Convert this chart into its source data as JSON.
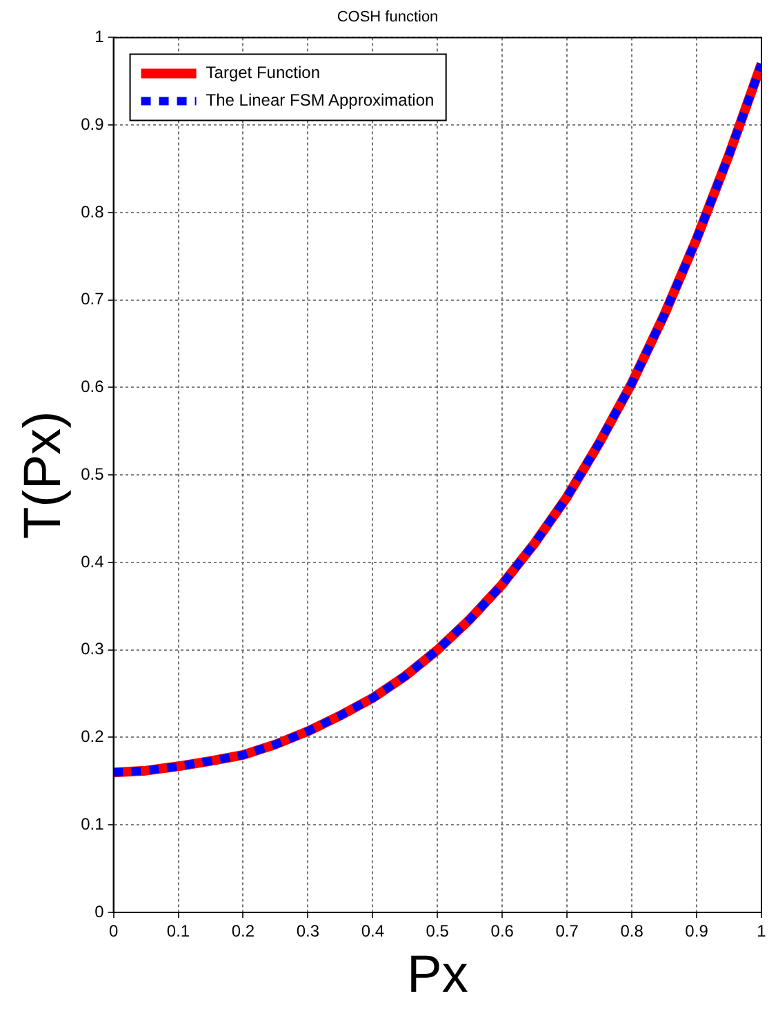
{
  "chart_data": {
    "type": "line",
    "title": "COSH function",
    "xlabel": "Px",
    "ylabel": "T(Px)",
    "x": [
      0,
      0.05,
      0.1,
      0.15,
      0.2,
      0.25,
      0.3,
      0.35,
      0.4,
      0.45,
      0.5,
      0.55,
      0.6,
      0.65,
      0.7,
      0.75,
      0.8,
      0.85,
      0.9,
      0.95,
      1
    ],
    "series": [
      {
        "name": "Target Function",
        "color": "#ff0000",
        "line_style": "solid",
        "values": [
          0.16,
          0.162,
          0.167,
          0.173,
          0.18,
          0.192,
          0.207,
          0.225,
          0.245,
          0.27,
          0.3,
          0.335,
          0.375,
          0.422,
          0.475,
          0.537,
          0.605,
          0.683,
          0.77,
          0.866,
          0.97
        ]
      },
      {
        "name": "The Linear FSM Approximation",
        "color": "#0000ff",
        "line_style": "dotted",
        "values": [
          0.16,
          0.162,
          0.167,
          0.173,
          0.18,
          0.192,
          0.207,
          0.225,
          0.245,
          0.27,
          0.3,
          0.335,
          0.375,
          0.422,
          0.475,
          0.537,
          0.605,
          0.683,
          0.77,
          0.866,
          0.97
        ]
      }
    ],
    "xlim": [
      0,
      1
    ],
    "ylim": [
      0,
      1
    ],
    "xticks": [
      0,
      0.1,
      0.2,
      0.3,
      0.4,
      0.5,
      0.6,
      0.7,
      0.8,
      0.9,
      1
    ],
    "yticks": [
      0,
      0.1,
      0.2,
      0.3,
      0.4,
      0.5,
      0.6,
      0.7,
      0.8,
      0.9,
      1
    ],
    "grid": true,
    "legend": "top left",
    "marker": "none"
  }
}
